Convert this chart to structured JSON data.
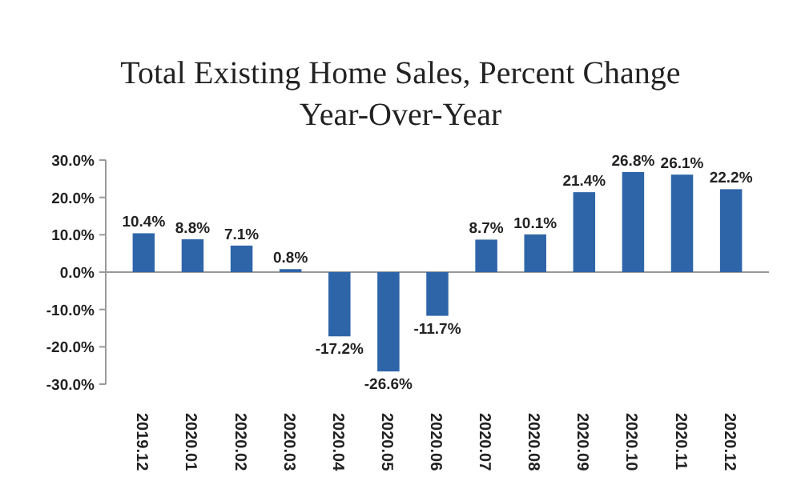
{
  "chart_data": {
    "type": "bar",
    "title": "Total Existing Home Sales, Percent Change\nYear-Over-Year",
    "categories": [
      "2019.12",
      "2020.01",
      "2020.02",
      "2020.03",
      "2020.04",
      "2020.05",
      "2020.06",
      "2020.07",
      "2020.08",
      "2020.09",
      "2020.10",
      "2020.11",
      "2020.12"
    ],
    "values": [
      10.4,
      8.8,
      7.1,
      0.8,
      -17.2,
      -26.6,
      -11.7,
      8.7,
      10.1,
      21.4,
      26.8,
      26.1,
      22.2
    ],
    "value_labels": [
      "10.4%",
      "8.8%",
      "7.1%",
      "0.8%",
      "-17.2%",
      "-26.6%",
      "-11.7%",
      "8.7%",
      "10.1%",
      "21.4%",
      "26.8%",
      "26.1%",
      "22.2%"
    ],
    "color": "#2e65a8",
    "ylim": [
      -30,
      30
    ],
    "yticks": [
      {
        "value": -30,
        "label": "-30.0%"
      },
      {
        "value": -20,
        "label": "-20.0%"
      },
      {
        "value": -10,
        "label": "-10.0%"
      },
      {
        "value": 0,
        "label": "0.0%"
      },
      {
        "value": 10,
        "label": "10.0%"
      },
      {
        "value": 20,
        "label": "20.0%"
      },
      {
        "value": 30,
        "label": "30.0%"
      }
    ]
  }
}
